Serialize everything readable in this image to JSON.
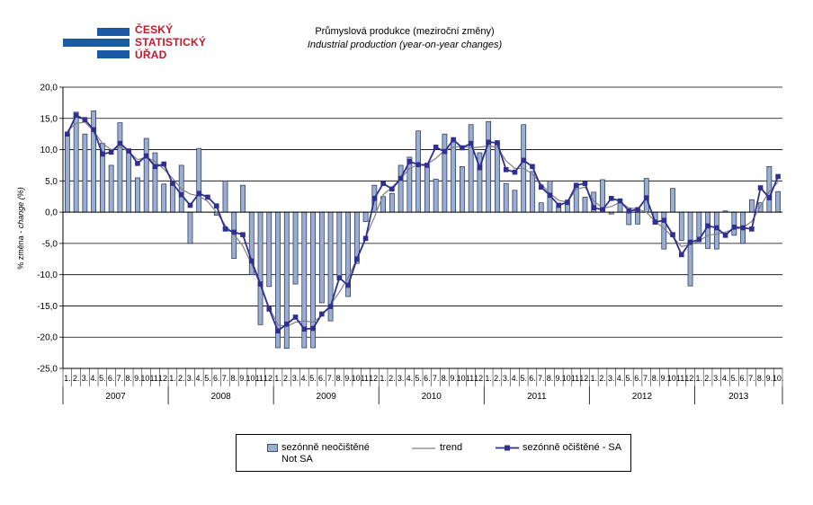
{
  "logo": {
    "line1": "ČESKÝ",
    "line2": "STATISTICKÝ",
    "line3": "ÚŘAD"
  },
  "colors": {
    "bars_fill": "#9aaed0",
    "bars_stroke": "#1f2d5a",
    "trend": "#808080",
    "sa": "#2f2f8f",
    "grid": "#000000"
  },
  "chart_data": {
    "type": "bar",
    "title": "Průmyslová produkce (meziroční změny)",
    "subtitle": "Industrial production  (year-on-year changes)",
    "ylabel_cz": "% změna - ",
    "ylabel_en": "change (%)",
    "ylim": [
      -25,
      20
    ],
    "yticks": [
      20,
      15,
      10,
      5,
      0,
      -5,
      -10,
      -15,
      -20,
      -25
    ],
    "ytick_labels": [
      "20,0",
      "15,0",
      "10,0",
      "5,0",
      "0,0",
      "-5,0",
      "-10,0",
      "-15,0",
      "-20,0",
      "-25,0"
    ],
    "grid": true,
    "legend_position": "bottom",
    "years": [
      "2007",
      "2008",
      "2009",
      "2010",
      "2011",
      "2012",
      "2013"
    ],
    "month_labels_full": [
      "1.",
      "2.",
      "3.",
      "4.",
      "5.",
      "6.",
      "7.",
      "8.",
      "9.",
      "10.",
      "11.",
      "12."
    ],
    "month_labels_2013": [
      "1.",
      "2.",
      "3.",
      "4.",
      "5.",
      "6.",
      "7.",
      "8.",
      "9.",
      "10."
    ],
    "series": [
      {
        "name": "sezónně neočištěné Not SA",
        "legend_line1": "sezónně neočištěné",
        "legend_line2": "Not SA",
        "kind": "bar",
        "values": [
          12.5,
          16.0,
          12.5,
          16.2,
          11.0,
          7.5,
          14.3,
          10.0,
          5.5,
          11.8,
          9.5,
          4.5,
          5.0,
          7.5,
          -5.0,
          10.2,
          0.0,
          -0.5,
          5.0,
          -7.4,
          4.3,
          -10.0,
          -18.0,
          -11.9,
          -21.7,
          -21.8,
          -11.5,
          -21.7,
          -21.7,
          -14.5,
          -17.4,
          -10.5,
          -13.5,
          -8.2,
          -1.5,
          4.3,
          2.5,
          3.0,
          7.5,
          8.8,
          13.0,
          7.2,
          5.3,
          12.5,
          11.5,
          7.3,
          14.0,
          9.5,
          14.5,
          11.2,
          4.6,
          3.5,
          14.0,
          6.5,
          1.5,
          5.0,
          0.9,
          1.2,
          4.3,
          2.4,
          3.2,
          5.2,
          -0.3,
          1.5,
          -2.0,
          -1.9,
          5.4,
          -1.8,
          -5.9,
          3.8,
          -4.5,
          -11.8,
          -4.0,
          -5.8,
          -5.9,
          0.2,
          -3.7,
          -5.0,
          2.0,
          1.5,
          7.3,
          3.3
        ]
      },
      {
        "name": "trend",
        "kind": "line",
        "values": [
          13.0,
          14.2,
          14.4,
          13.0,
          11.0,
          10.0,
          10.4,
          9.7,
          8.4,
          8.8,
          8.1,
          6.9,
          5.4,
          3.7,
          2.9,
          2.6,
          1.7,
          0.0,
          -2.1,
          -3.6,
          -5.4,
          -8.3,
          -11.7,
          -15.2,
          -18.0,
          -18.3,
          -17.6,
          -17.4,
          -17.6,
          -16.6,
          -14.8,
          -12.8,
          -10.5,
          -7.5,
          -4.0,
          -0.8,
          2.8,
          4.0,
          5.3,
          7.0,
          7.6,
          7.7,
          8.6,
          9.9,
          10.4,
          10.5,
          10.3,
          10.4,
          10.6,
          10.4,
          8.2,
          7.0,
          7.0,
          6.1,
          4.5,
          3.0,
          1.9,
          1.6,
          3.7,
          4.0,
          1.8,
          0.6,
          0.9,
          1.6,
          0.7,
          0.5,
          0.0,
          -1.5,
          -2.6,
          -4.0,
          -5.5,
          -5.2,
          -4.6,
          -3.7,
          -3.5,
          -3.2,
          -2.7,
          -2.5,
          -1.5,
          1.0,
          3.3,
          4.8
        ]
      },
      {
        "name": "sezónně očištěné - SA",
        "kind": "line-marker",
        "values": [
          12.5,
          15.5,
          14.8,
          13.2,
          9.3,
          9.6,
          11.0,
          9.8,
          7.8,
          9.0,
          7.3,
          7.7,
          4.6,
          2.8,
          1.1,
          3.0,
          2.4,
          1.0,
          -2.7,
          -3.2,
          -3.6,
          -7.8,
          -11.5,
          -15.5,
          -19.0,
          -17.9,
          -16.8,
          -18.7,
          -18.6,
          -16.3,
          -15.1,
          -10.5,
          -11.7,
          -7.5,
          -4.2,
          2.2,
          4.6,
          3.7,
          5.4,
          8.1,
          7.6,
          7.5,
          10.4,
          9.7,
          11.6,
          10.3,
          11.0,
          7.1,
          11.2,
          11.1,
          6.8,
          6.4,
          8.3,
          7.3,
          4.0,
          2.7,
          1.1,
          1.6,
          4.3,
          4.6,
          0.7,
          0.4,
          2.2,
          1.8,
          0.2,
          0.4,
          2.3,
          -1.6,
          -1.3,
          -3.6,
          -6.8,
          -4.8,
          -4.4,
          -2.2,
          -2.5,
          -3.7,
          -2.4,
          -2.5,
          -2.7,
          3.9,
          2.3,
          5.7
        ]
      }
    ]
  }
}
